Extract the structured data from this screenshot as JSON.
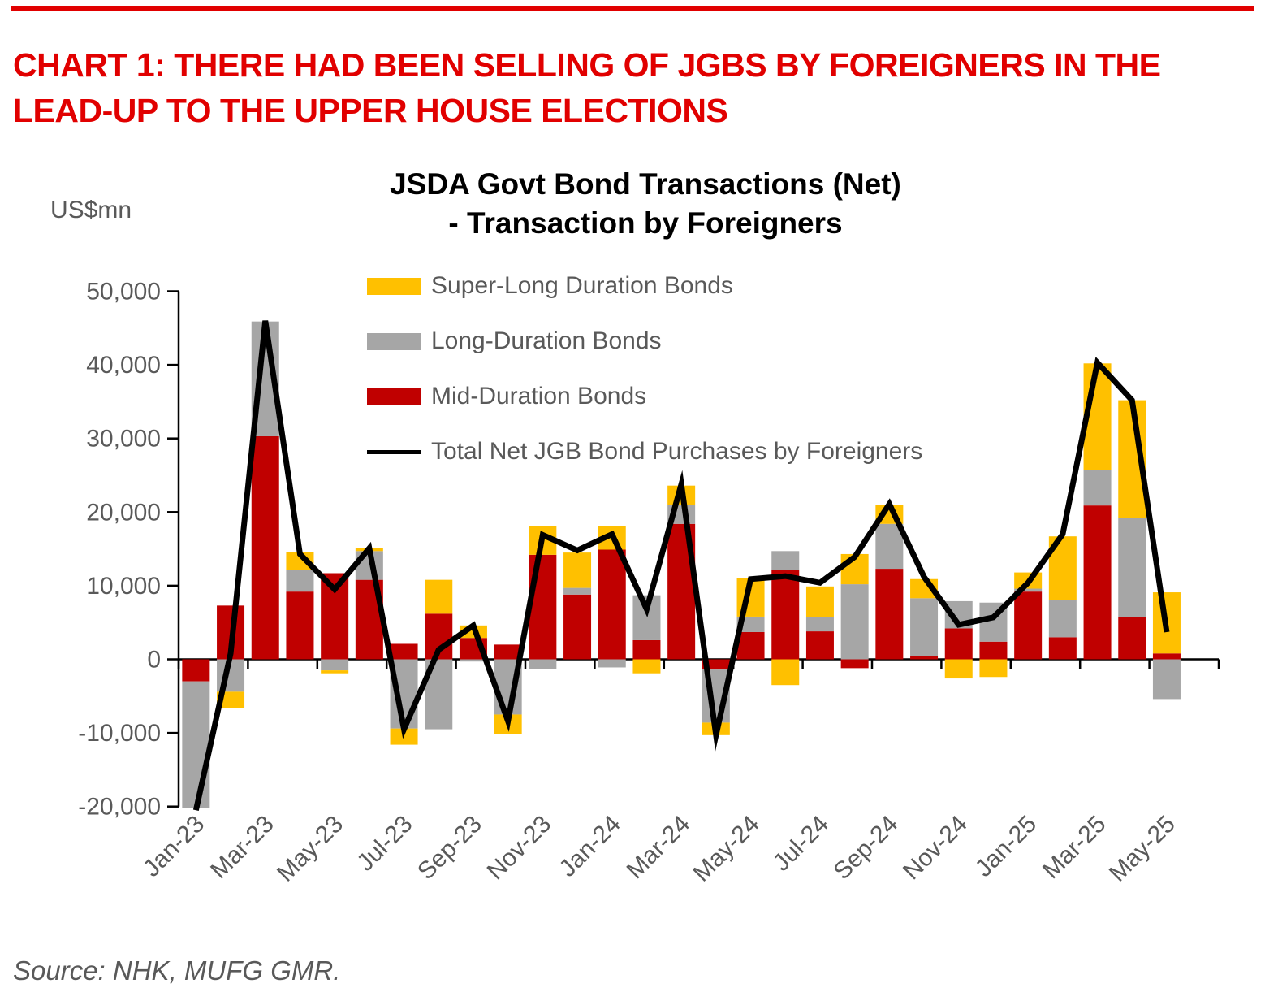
{
  "header": {
    "accent_color": "#E10000",
    "title_line1": "CHART 1: THERE HAD BEEN SELLING OF JGBS BY FOREIGNERS IN THE",
    "title_line2": "LEAD-UP TO THE UPPER HOUSE ELECTIONS"
  },
  "source": {
    "text": "Source: NHK, MUFG GMR."
  },
  "chart_data": {
    "type": "bar",
    "subtype": "stacked-bars-with-line-overlay",
    "title_line1": "JSDA Govt Bond Transactions (Net)",
    "title_line2": "- Transaction by Foreigners",
    "ylabel": "US$mn",
    "ylim": [
      -20000,
      50000
    ],
    "ytick_step": 10000,
    "ytick_labels": [
      "50,000",
      "40,000",
      "30,000",
      "20,000",
      "10,000",
      "0",
      "-10,000",
      "-20,000"
    ],
    "grid": "off",
    "legend_position": "upper-center-vertical",
    "x_label_rotation_deg": 45,
    "x_labels_every_n_months": 2,
    "categories": [
      "Jan-23",
      "Feb-23",
      "Mar-23",
      "Apr-23",
      "May-23",
      "Jun-23",
      "Jul-23",
      "Aug-23",
      "Sep-23",
      "Oct-23",
      "Nov-23",
      "Dec-23",
      "Jan-24",
      "Feb-24",
      "Mar-24",
      "Apr-24",
      "May-24",
      "Jun-24",
      "Jul-24",
      "Aug-24",
      "Sep-24",
      "Oct-24",
      "Nov-24",
      "Dec-24",
      "Jan-25",
      "Feb-25",
      "Mar-25",
      "Apr-25",
      "May-25"
    ],
    "stack_order_indices": [
      2,
      1,
      0
    ],
    "series": [
      {
        "name": "Super-Long Duration Bonds",
        "type": "bar",
        "color": "#FFC000",
        "values": [
          0,
          -2200,
          0,
          2500,
          -400,
          400,
          -2200,
          4600,
          1700,
          -2600,
          3900,
          4800,
          3200,
          -1900,
          2600,
          -1700,
          5200,
          -3500,
          4200,
          4100,
          2600,
          2600,
          -2600,
          -2400,
          2200,
          8600,
          14500,
          16000,
          8300
        ]
      },
      {
        "name": "Long-Duration Bonds",
        "type": "bar",
        "color": "#A6A6A6",
        "values": [
          -17200,
          -4400,
          15600,
          2900,
          -1500,
          3900,
          -9400,
          -9500,
          -300,
          -7500,
          -1300,
          900,
          -1100,
          6100,
          2600,
          -7200,
          2100,
          2600,
          1900,
          10200,
          6100,
          7900,
          3700,
          5300,
          400,
          5100,
          4800,
          13500,
          -5400
        ]
      },
      {
        "name": "Mid-Duration Bonds",
        "type": "bar",
        "color": "#C00000",
        "values": [
          -3000,
          7300,
          30300,
          9200,
          11700,
          10800,
          2100,
          6200,
          2900,
          2000,
          14200,
          8800,
          14900,
          2600,
          18400,
          -1400,
          3700,
          12100,
          3800,
          -1200,
          12300,
          400,
          4200,
          2400,
          9200,
          3000,
          20900,
          5700,
          800
        ]
      },
      {
        "name": "Total Net JGB Bond Purchases by Foreigners",
        "type": "line",
        "color": "#000000",
        "values": [
          -20500,
          800,
          46000,
          14300,
          9500,
          15100,
          -9500,
          1300,
          4600,
          -8400,
          16900,
          14800,
          17000,
          6800,
          23800,
          -10300,
          10900,
          11300,
          10400,
          13900,
          21100,
          11200,
          4700,
          5700,
          10400,
          17000,
          40300,
          35200,
          3700
        ]
      }
    ]
  }
}
